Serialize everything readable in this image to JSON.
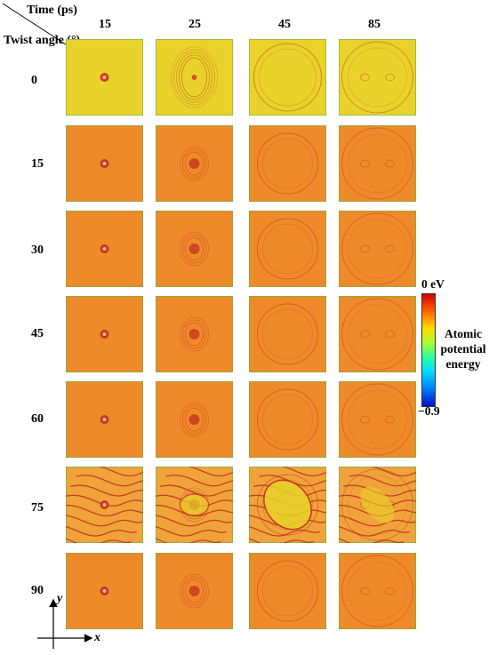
{
  "header": {
    "time_label": "Time (ps)",
    "twist_label": "Twist angle (°)"
  },
  "time_values": [
    "15",
    "25",
    "45",
    "85"
  ],
  "twist_angles": [
    "0",
    "15",
    "30",
    "45",
    "60",
    "75",
    "90"
  ],
  "colorbar": {
    "max_label": "0 eV",
    "min_label": "−0.9",
    "title_lines": [
      "Atomic",
      "potential",
      "energy"
    ]
  },
  "axes": {
    "x_label": "x",
    "y_label": "y"
  },
  "colors": {
    "row0_bg": "#e9d22a",
    "row_bg": "#ef8a2a",
    "row75_bg": "#f0a33a",
    "feature": "#c0311c",
    "border_green": "#5fb84a"
  }
}
